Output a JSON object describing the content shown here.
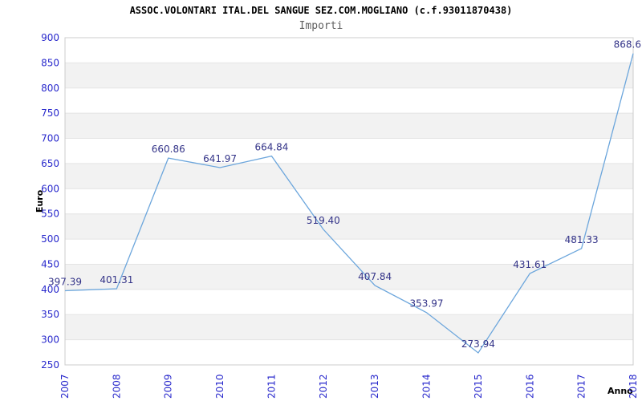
{
  "chart_data": {
    "type": "line",
    "title": "ASSOC.VOLONTARI ITAL.DEL SANGUE SEZ.COM.MOGLIANO (c.f.93011870438)",
    "subtitle": "Importi",
    "xlabel": "Anno",
    "ylabel": "Euro",
    "x": [
      "2007",
      "2008",
      "2009",
      "2010",
      "2011",
      "2012",
      "2013",
      "2014",
      "2015",
      "2016",
      "2017",
      "2018"
    ],
    "values": [
      397.39,
      401.31,
      660.86,
      641.97,
      664.84,
      519.4,
      407.84,
      353.97,
      273.94,
      431.61,
      481.33,
      868.6
    ],
    "point_labels": [
      "397.39",
      "401.31",
      "660.86",
      "641.97",
      "664.84",
      "519.40",
      "407.84",
      "353.97",
      "273.94",
      "431.61",
      "481.33",
      "868.6"
    ],
    "ylim": [
      250,
      900
    ],
    "ytick_step": 50,
    "yticks": [
      250,
      300,
      350,
      400,
      450,
      500,
      550,
      600,
      650,
      700,
      750,
      800,
      850,
      900
    ],
    "grid": "horizontal gridlines with alternating gray bands",
    "legend": "none"
  },
  "colors": {
    "line": "#6ca6dc",
    "tick_label": "#2929cc",
    "point_label": "#333388",
    "band": "#f2f2f2",
    "gridline": "#e4e4e4",
    "plot_border": "#cccccc",
    "title": "#000000",
    "subtitle": "#606060",
    "background": "#ffffff"
  }
}
